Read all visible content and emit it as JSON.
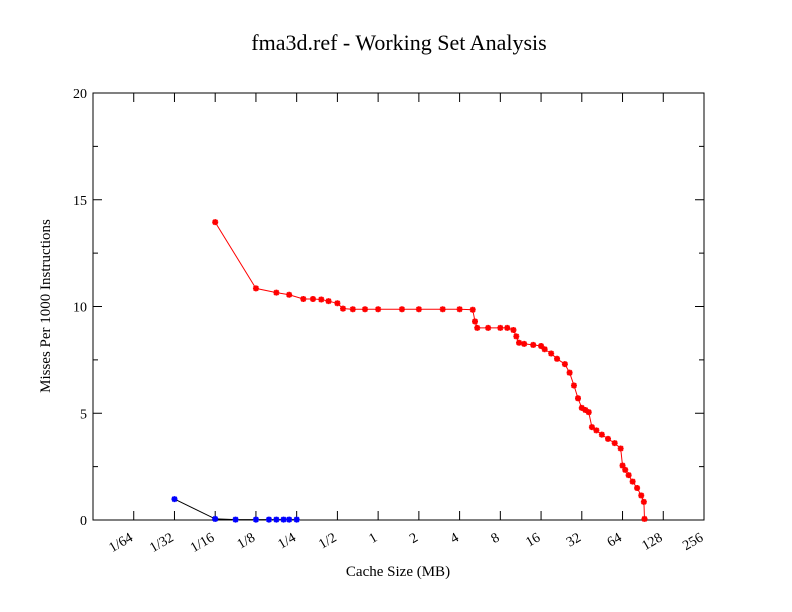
{
  "chart_data": {
    "type": "line",
    "title": "fma3d.ref - Working Set Analysis",
    "xlabel": "Cache Size (MB)",
    "ylabel": "Misses Per 1000 Instructions",
    "x_scale": "log2",
    "xlim": [
      0.0078125,
      256
    ],
    "ylim": [
      0,
      20
    ],
    "x_ticks": [
      {
        "value": 0.015625,
        "label": "1/64"
      },
      {
        "value": 0.03125,
        "label": "1/32"
      },
      {
        "value": 0.0625,
        "label": "1/16"
      },
      {
        "value": 0.125,
        "label": "1/8"
      },
      {
        "value": 0.25,
        "label": "1/4"
      },
      {
        "value": 0.5,
        "label": "1/2"
      },
      {
        "value": 1,
        "label": "1"
      },
      {
        "value": 2,
        "label": "2"
      },
      {
        "value": 4,
        "label": "4"
      },
      {
        "value": 8,
        "label": "8"
      },
      {
        "value": 16,
        "label": "16"
      },
      {
        "value": 32,
        "label": "32"
      },
      {
        "value": 64,
        "label": "64"
      },
      {
        "value": 128,
        "label": "128"
      },
      {
        "value": 256,
        "label": "256"
      }
    ],
    "y_ticks": [
      {
        "value": 0,
        "label": "0"
      },
      {
        "value": 5,
        "label": "5"
      },
      {
        "value": 10,
        "label": "10"
      },
      {
        "value": 15,
        "label": "15"
      },
      {
        "value": 20,
        "label": "20"
      }
    ],
    "y_minor_ticks": [
      2.5,
      7.5,
      12.5,
      17.5
    ],
    "grid": false,
    "series": [
      {
        "color": "#ff0000",
        "marker": "star",
        "points": [
          [
            0.0625,
            13.95
          ],
          [
            0.125,
            10.85
          ],
          [
            0.177,
            10.65
          ],
          [
            0.22,
            10.55
          ],
          [
            0.28,
            10.35
          ],
          [
            0.33,
            10.35
          ],
          [
            0.38,
            10.33
          ],
          [
            0.43,
            10.25
          ],
          [
            0.5,
            10.15
          ],
          [
            0.55,
            9.9
          ],
          [
            0.65,
            9.87
          ],
          [
            0.8,
            9.87
          ],
          [
            1.0,
            9.87
          ],
          [
            1.5,
            9.87
          ],
          [
            2.0,
            9.87
          ],
          [
            3.0,
            9.87
          ],
          [
            4.0,
            9.87
          ],
          [
            5.0,
            9.85
          ],
          [
            5.2,
            9.3
          ],
          [
            5.4,
            9.0
          ],
          [
            6.5,
            9.0
          ],
          [
            8.0,
            9.0
          ],
          [
            9.0,
            9.0
          ],
          [
            10.0,
            8.9
          ],
          [
            10.5,
            8.6
          ],
          [
            11.0,
            8.3
          ],
          [
            12.0,
            8.25
          ],
          [
            14.0,
            8.2
          ],
          [
            16.0,
            8.15
          ],
          [
            17.0,
            8.0
          ],
          [
            19.0,
            7.8
          ],
          [
            21.0,
            7.55
          ],
          [
            24.0,
            7.3
          ],
          [
            26.0,
            6.9
          ],
          [
            28.0,
            6.3
          ],
          [
            30.0,
            5.7
          ],
          [
            32.0,
            5.25
          ],
          [
            34.0,
            5.15
          ],
          [
            36.0,
            5.05
          ],
          [
            38.0,
            4.35
          ],
          [
            41.0,
            4.2
          ],
          [
            45.0,
            4.0
          ],
          [
            50.0,
            3.8
          ],
          [
            56.0,
            3.6
          ],
          [
            62.0,
            3.35
          ],
          [
            64.0,
            2.55
          ],
          [
            67.0,
            2.35
          ],
          [
            71.0,
            2.1
          ],
          [
            76.0,
            1.8
          ],
          [
            82.0,
            1.5
          ],
          [
            88.0,
            1.15
          ],
          [
            92.0,
            0.85
          ],
          [
            93.0,
            0.05
          ]
        ]
      },
      {
        "color": "#0000ff",
        "marker": "star",
        "points": [
          [
            0.03125,
            0.98
          ],
          [
            0.0625,
            0.05
          ],
          [
            0.0884,
            0.02
          ],
          [
            0.125,
            0.02
          ],
          [
            0.156,
            0.02
          ],
          [
            0.177,
            0.02
          ],
          [
            0.2,
            0.02
          ],
          [
            0.22,
            0.02
          ],
          [
            0.25,
            0.02
          ]
        ]
      }
    ]
  }
}
